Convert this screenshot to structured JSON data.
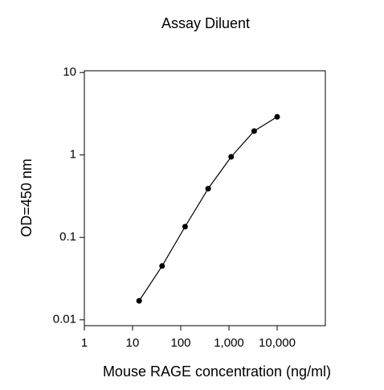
{
  "chart_data": {
    "type": "line",
    "title": "Assay Diluent",
    "x_label": "Mouse RAGE concentration (ng/ml)",
    "y_label": "OD=450 nm",
    "x": [
      13.7,
      41,
      123,
      370,
      1111,
      3333,
      10000
    ],
    "series": [
      {
        "color": "#000000",
        "values": [
          0.017,
          0.045,
          0.135,
          0.39,
          0.95,
          1.95,
          2.9
        ]
      }
    ],
    "x_log": true,
    "y_log": true,
    "xlim": [
      1,
      100000
    ],
    "xticks": [
      1,
      10,
      100,
      {
        "value": 1000,
        "label": "1,000"
      },
      {
        "value": 10000,
        "label": "10,000"
      }
    ],
    "ylim": [
      0.0085,
      10.5
    ],
    "yticks": [
      0.01,
      0.1,
      1,
      10
    ],
    "grid": false
  }
}
